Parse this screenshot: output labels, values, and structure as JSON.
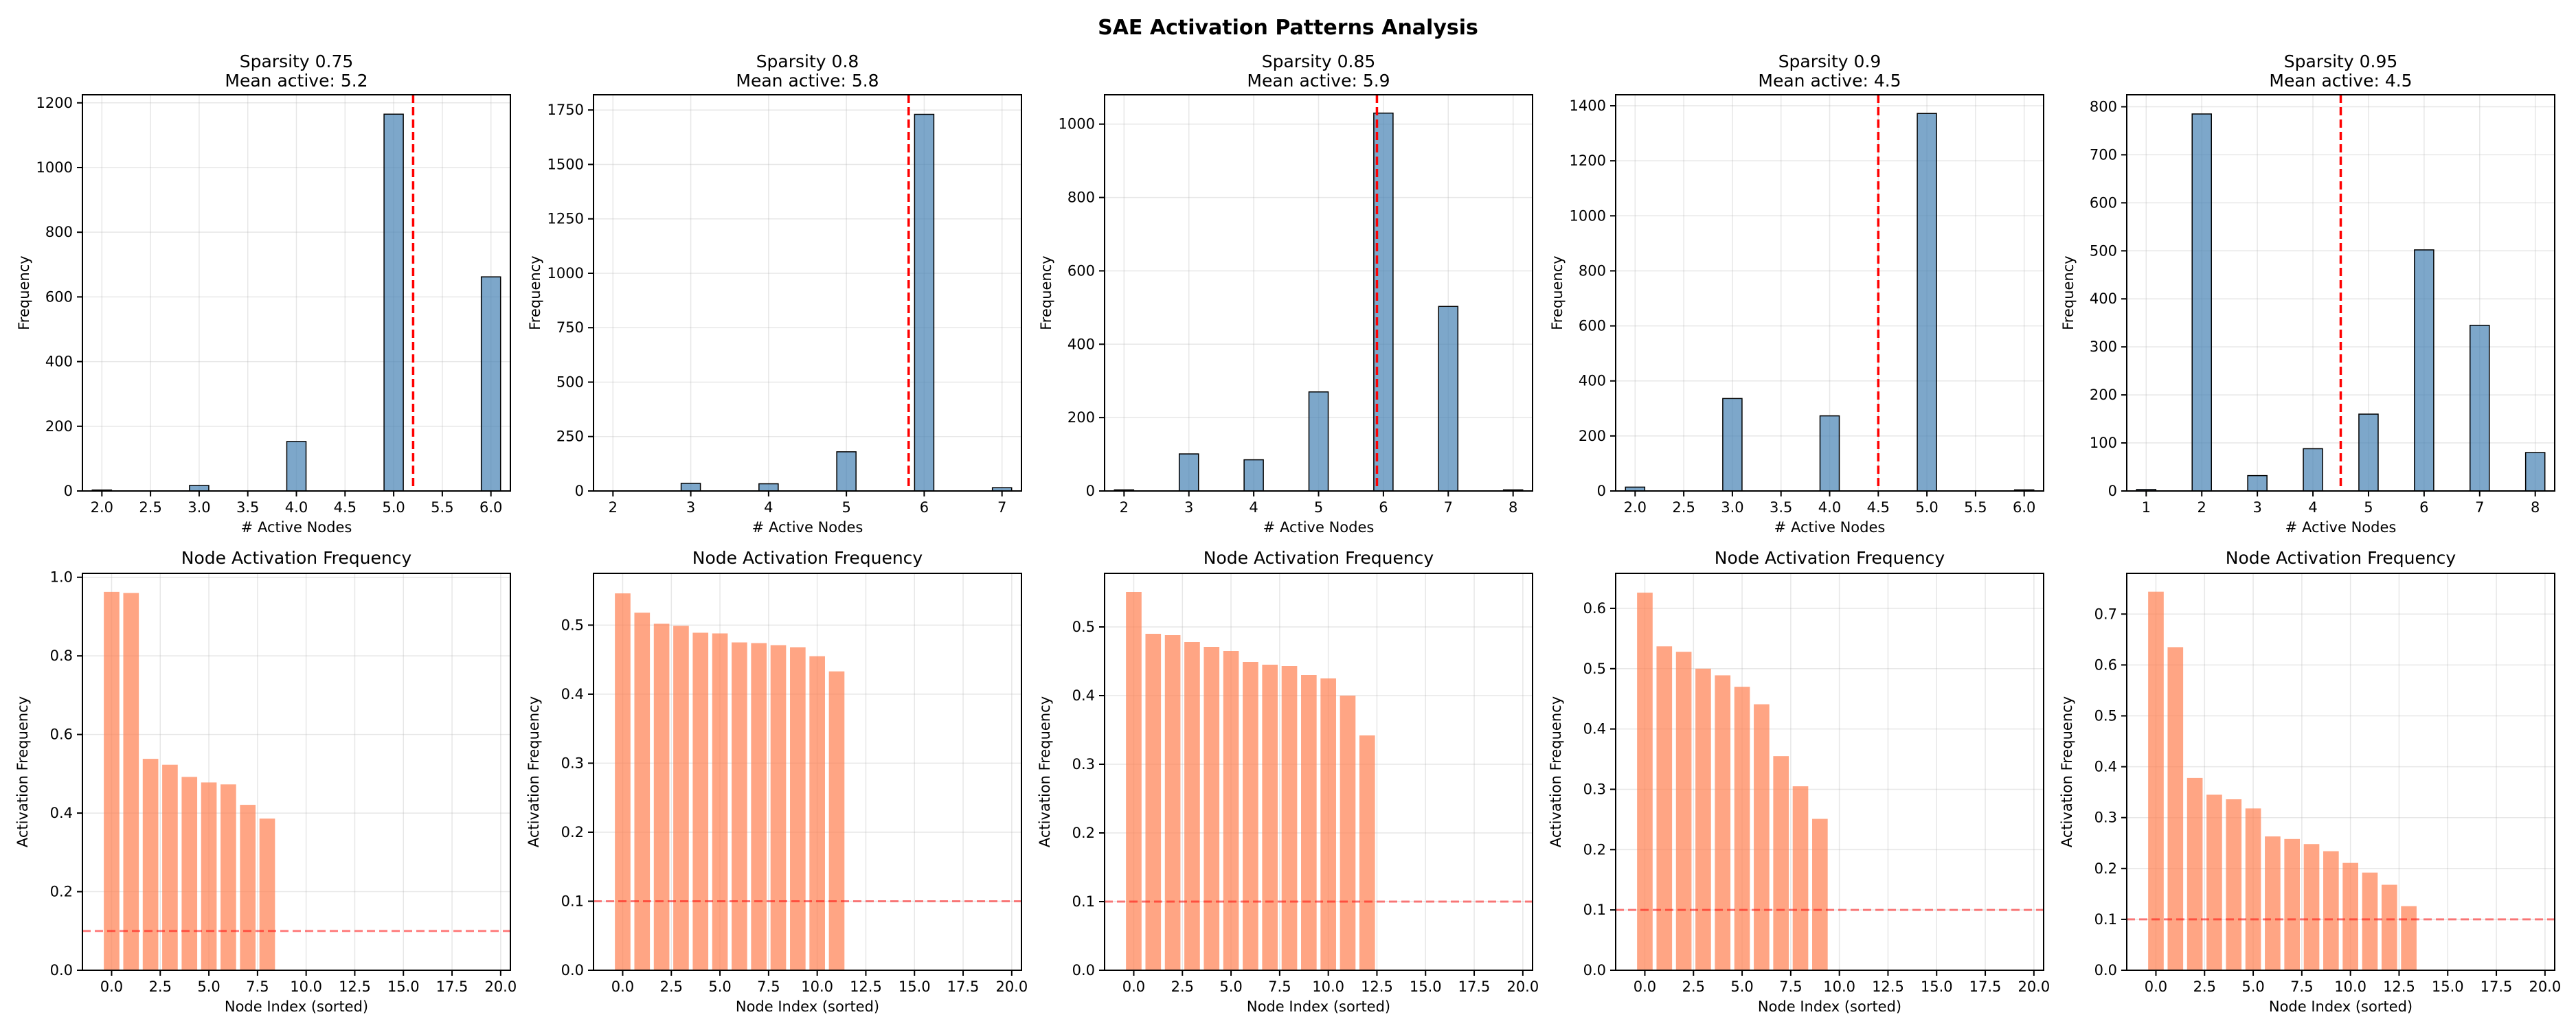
{
  "figure": {
    "title": "SAE Activation Patterns Analysis",
    "colors": {
      "hist": "#4682b4",
      "node_bar": "#ff7f50",
      "mean_line": "#ff0000",
      "threshold_line": "#ff0000"
    }
  },
  "chart_data": [
    {
      "type": "bar",
      "role": "histogram",
      "column": 0,
      "title_line1": "Sparsity 0.75",
      "title_line2": "Mean active: 5.2",
      "xlabel": "# Active Nodes",
      "ylabel": "Frequency",
      "xlim": [
        1.8,
        6.2
      ],
      "ylim": [
        0,
        1225
      ],
      "xticks": [
        2.0,
        2.5,
        3.0,
        3.5,
        4.0,
        4.5,
        5.0,
        5.5,
        6.0
      ],
      "xtick_labels": [
        "2.0",
        "2.5",
        "3.0",
        "3.5",
        "4.0",
        "4.5",
        "5.0",
        "5.5",
        "6.0"
      ],
      "yticks": [
        0,
        200,
        400,
        600,
        800,
        1000,
        1200
      ],
      "bin_width": 0.2,
      "bars": [
        {
          "x": 2,
          "value": 3
        },
        {
          "x": 3,
          "value": 17
        },
        {
          "x": 4,
          "value": 153
        },
        {
          "x": 5,
          "value": 1165
        },
        {
          "x": 6,
          "value": 662
        }
      ],
      "mean": 5.2
    },
    {
      "type": "bar",
      "role": "histogram",
      "column": 1,
      "title_line1": "Sparsity 0.8",
      "title_line2": "Mean active: 5.8",
      "xlabel": "# Active Nodes",
      "ylabel": "Frequency",
      "xlim": [
        1.75,
        7.25
      ],
      "ylim": [
        0,
        1820
      ],
      "xticks": [
        2,
        3,
        4,
        5,
        6,
        7
      ],
      "xtick_labels": [
        "2",
        "3",
        "4",
        "5",
        "6",
        "7"
      ],
      "yticks": [
        0,
        250,
        500,
        750,
        1000,
        1250,
        1500,
        1750
      ],
      "bin_width": 0.25,
      "bars": [
        {
          "x": 3,
          "value": 35
        },
        {
          "x": 4,
          "value": 33
        },
        {
          "x": 5,
          "value": 180
        },
        {
          "x": 6,
          "value": 1730
        },
        {
          "x": 7,
          "value": 15
        }
      ],
      "mean": 5.8
    },
    {
      "type": "bar",
      "role": "histogram",
      "column": 2,
      "title_line1": "Sparsity 0.85",
      "title_line2": "Mean active: 5.9",
      "xlabel": "# Active Nodes",
      "ylabel": "Frequency",
      "xlim": [
        1.7,
        8.3
      ],
      "ylim": [
        0,
        1080
      ],
      "xticks": [
        2,
        3,
        4,
        5,
        6,
        7,
        8
      ],
      "xtick_labels": [
        "2",
        "3",
        "4",
        "5",
        "6",
        "7",
        "8"
      ],
      "yticks": [
        0,
        200,
        400,
        600,
        800,
        1000
      ],
      "bin_width": 0.3,
      "bars": [
        {
          "x": 2,
          "value": 3
        },
        {
          "x": 3,
          "value": 101
        },
        {
          "x": 4,
          "value": 85
        },
        {
          "x": 5,
          "value": 270
        },
        {
          "x": 6,
          "value": 1030
        },
        {
          "x": 7,
          "value": 503
        },
        {
          "x": 8,
          "value": 3
        }
      ],
      "mean": 5.9
    },
    {
      "type": "bar",
      "role": "histogram",
      "column": 3,
      "title_line1": "Sparsity 0.9",
      "title_line2": "Mean active: 4.5",
      "xlabel": "# Active Nodes",
      "ylabel": "Frequency",
      "xlim": [
        1.8,
        6.2
      ],
      "ylim": [
        0,
        1440
      ],
      "xticks": [
        2.0,
        2.5,
        3.0,
        3.5,
        4.0,
        4.5,
        5.0,
        5.5,
        6.0
      ],
      "xtick_labels": [
        "2.0",
        "2.5",
        "3.0",
        "3.5",
        "4.0",
        "4.5",
        "5.0",
        "5.5",
        "6.0"
      ],
      "yticks": [
        0,
        200,
        400,
        600,
        800,
        1000,
        1200,
        1400
      ],
      "bin_width": 0.2,
      "bars": [
        {
          "x": 2,
          "value": 14
        },
        {
          "x": 3,
          "value": 336
        },
        {
          "x": 4,
          "value": 273
        },
        {
          "x": 5,
          "value": 1372
        },
        {
          "x": 6,
          "value": 4
        }
      ],
      "mean": 4.5
    },
    {
      "type": "bar",
      "role": "histogram",
      "column": 4,
      "title_line1": "Sparsity 0.95",
      "title_line2": "Mean active: 4.5",
      "xlabel": "# Active Nodes",
      "ylabel": "Frequency",
      "xlim": [
        0.65,
        8.35
      ],
      "ylim": [
        0,
        825
      ],
      "xticks": [
        1,
        2,
        3,
        4,
        5,
        6,
        7,
        8
      ],
      "xtick_labels": [
        "1",
        "2",
        "3",
        "4",
        "5",
        "6",
        "7",
        "8"
      ],
      "yticks": [
        0,
        100,
        200,
        300,
        400,
        500,
        600,
        700,
        800
      ],
      "bin_width": 0.35,
      "bars": [
        {
          "x": 1,
          "value": 3
        },
        {
          "x": 2,
          "value": 785
        },
        {
          "x": 3,
          "value": 32
        },
        {
          "x": 4,
          "value": 88
        },
        {
          "x": 5,
          "value": 160
        },
        {
          "x": 6,
          "value": 502
        },
        {
          "x": 7,
          "value": 345
        },
        {
          "x": 8,
          "value": 80
        }
      ],
      "mean": 4.5
    },
    {
      "type": "bar",
      "role": "node_frequency",
      "column": 0,
      "title": "Node Activation Frequency",
      "xlabel": "Node Index (sorted)",
      "ylabel": "Activation Frequency",
      "xlim": [
        -1.5,
        20.5
      ],
      "ylim": [
        0,
        1.01
      ],
      "xticks": [
        0,
        2.5,
        5,
        7.5,
        10,
        12.5,
        15,
        17.5,
        20
      ],
      "xtick_labels": [
        "0.0",
        "2.5",
        "5.0",
        "7.5",
        "10.0",
        "12.5",
        "15.0",
        "17.5",
        "20.0"
      ],
      "yticks": [
        0,
        0.2,
        0.4,
        0.6,
        0.8,
        1.0
      ],
      "ytick_labels": [
        "0.0",
        "0.2",
        "0.4",
        "0.6",
        "0.8",
        "1.0"
      ],
      "values": [
        0.963,
        0.96,
        0.538,
        0.523,
        0.492,
        0.478,
        0.473,
        0.421,
        0.386
      ],
      "threshold": 0.1
    },
    {
      "type": "bar",
      "role": "node_frequency",
      "column": 1,
      "title": "Node Activation Frequency",
      "xlabel": "Node Index (sorted)",
      "ylabel": "Activation Frequency",
      "xlim": [
        -1.5,
        20.5
      ],
      "ylim": [
        0,
        0.575
      ],
      "xticks": [
        0,
        2.5,
        5,
        7.5,
        10,
        12.5,
        15,
        17.5,
        20
      ],
      "xtick_labels": [
        "0.0",
        "2.5",
        "5.0",
        "7.5",
        "10.0",
        "12.5",
        "15.0",
        "17.5",
        "20.0"
      ],
      "yticks": [
        0,
        0.1,
        0.2,
        0.3,
        0.4,
        0.5
      ],
      "ytick_labels": [
        "0.0",
        "0.1",
        "0.2",
        "0.3",
        "0.4",
        "0.5"
      ],
      "values": [
        0.546,
        0.518,
        0.502,
        0.499,
        0.489,
        0.488,
        0.475,
        0.474,
        0.471,
        0.468,
        0.455,
        0.433
      ],
      "threshold": 0.1
    },
    {
      "type": "bar",
      "role": "node_frequency",
      "column": 2,
      "title": "Node Activation Frequency",
      "xlabel": "Node Index (sorted)",
      "ylabel": "Activation Frequency",
      "xlim": [
        -1.5,
        20.5
      ],
      "ylim": [
        0,
        0.578
      ],
      "xticks": [
        0,
        2.5,
        5,
        7.5,
        10,
        12.5,
        15,
        17.5,
        20
      ],
      "xtick_labels": [
        "0.0",
        "2.5",
        "5.0",
        "7.5",
        "10.0",
        "12.5",
        "15.0",
        "17.5",
        "20.0"
      ],
      "yticks": [
        0,
        0.1,
        0.2,
        0.3,
        0.4,
        0.5
      ],
      "ytick_labels": [
        "0.0",
        "0.1",
        "0.2",
        "0.3",
        "0.4",
        "0.5"
      ],
      "values": [
        0.551,
        0.49,
        0.488,
        0.478,
        0.471,
        0.465,
        0.449,
        0.445,
        0.443,
        0.43,
        0.425,
        0.4,
        0.342
      ],
      "threshold": 0.1
    },
    {
      "type": "bar",
      "role": "node_frequency",
      "column": 3,
      "title": "Node Activation Frequency",
      "xlabel": "Node Index (sorted)",
      "ylabel": "Activation Frequency",
      "xlim": [
        -1.5,
        20.5
      ],
      "ylim": [
        0,
        0.658
      ],
      "xticks": [
        0,
        2.5,
        5,
        7.5,
        10,
        12.5,
        15,
        17.5,
        20
      ],
      "xtick_labels": [
        "0.0",
        "2.5",
        "5.0",
        "7.5",
        "10.0",
        "12.5",
        "15.0",
        "17.5",
        "20.0"
      ],
      "yticks": [
        0,
        0.1,
        0.2,
        0.3,
        0.4,
        0.5,
        0.6
      ],
      "ytick_labels": [
        "0.0",
        "0.1",
        "0.2",
        "0.3",
        "0.4",
        "0.5",
        "0.6"
      ],
      "values": [
        0.626,
        0.537,
        0.528,
        0.5,
        0.489,
        0.47,
        0.441,
        0.355,
        0.305,
        0.251
      ],
      "threshold": 0.1
    },
    {
      "type": "bar",
      "role": "node_frequency",
      "column": 4,
      "title": "Node Activation Frequency",
      "xlabel": "Node Index (sorted)",
      "ylabel": "Activation Frequency",
      "xlim": [
        -1.5,
        20.5
      ],
      "ylim": [
        0,
        0.78
      ],
      "xticks": [
        0,
        2.5,
        5,
        7.5,
        10,
        12.5,
        15,
        17.5,
        20
      ],
      "xtick_labels": [
        "0.0",
        "2.5",
        "5.0",
        "7.5",
        "10.0",
        "12.5",
        "15.0",
        "17.5",
        "20.0"
      ],
      "yticks": [
        0,
        0.1,
        0.2,
        0.3,
        0.4,
        0.5,
        0.6,
        0.7
      ],
      "ytick_labels": [
        "0.0",
        "0.1",
        "0.2",
        "0.3",
        "0.4",
        "0.5",
        "0.6",
        "0.7"
      ],
      "values": [
        0.744,
        0.635,
        0.378,
        0.345,
        0.336,
        0.318,
        0.263,
        0.258,
        0.248,
        0.234,
        0.211,
        0.192,
        0.168,
        0.126
      ],
      "threshold": 0.1
    }
  ]
}
